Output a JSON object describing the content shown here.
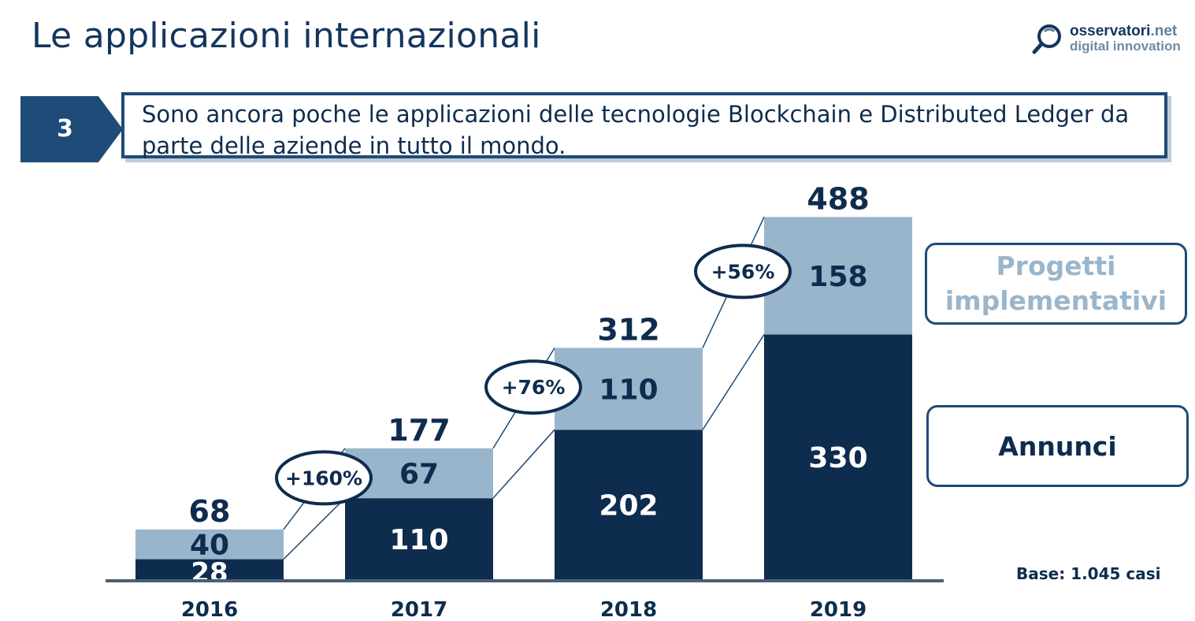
{
  "header": {
    "title": "Le applicazioni internazionali",
    "logo": {
      "line1": "osservatori",
      "line1_suffix": ".net",
      "line2": "digital innovation"
    }
  },
  "callout": {
    "number": "3",
    "text": "Sono ancora poche le applicazioni delle tecnologie Blockchain e Distributed Ledger da parte delle aziende in tutto il mondo."
  },
  "colors": {
    "annunci": "#0e2c4e",
    "progetti": "#99b5cb",
    "accent": "#1e4b78"
  },
  "chart_data": {
    "type": "bar",
    "stacked": true,
    "categories": [
      "2016",
      "2017",
      "2018",
      "2019"
    ],
    "series": [
      {
        "name": "Annunci",
        "values": [
          28,
          110,
          202,
          330
        ]
      },
      {
        "name": "Progetti implementativi",
        "values": [
          40,
          67,
          110,
          158
        ]
      }
    ],
    "totals": [
      "68",
      "177",
      "312",
      "488"
    ],
    "growth": [
      "+160%",
      "+76%",
      "+56%"
    ],
    "legend": {
      "progetti": "Progetti implementativi",
      "annunci": "Annunci",
      "placement": "right"
    },
    "base_note": "Base: 1.045 casi",
    "ylim": [
      0,
      488
    ],
    "grid": false
  }
}
